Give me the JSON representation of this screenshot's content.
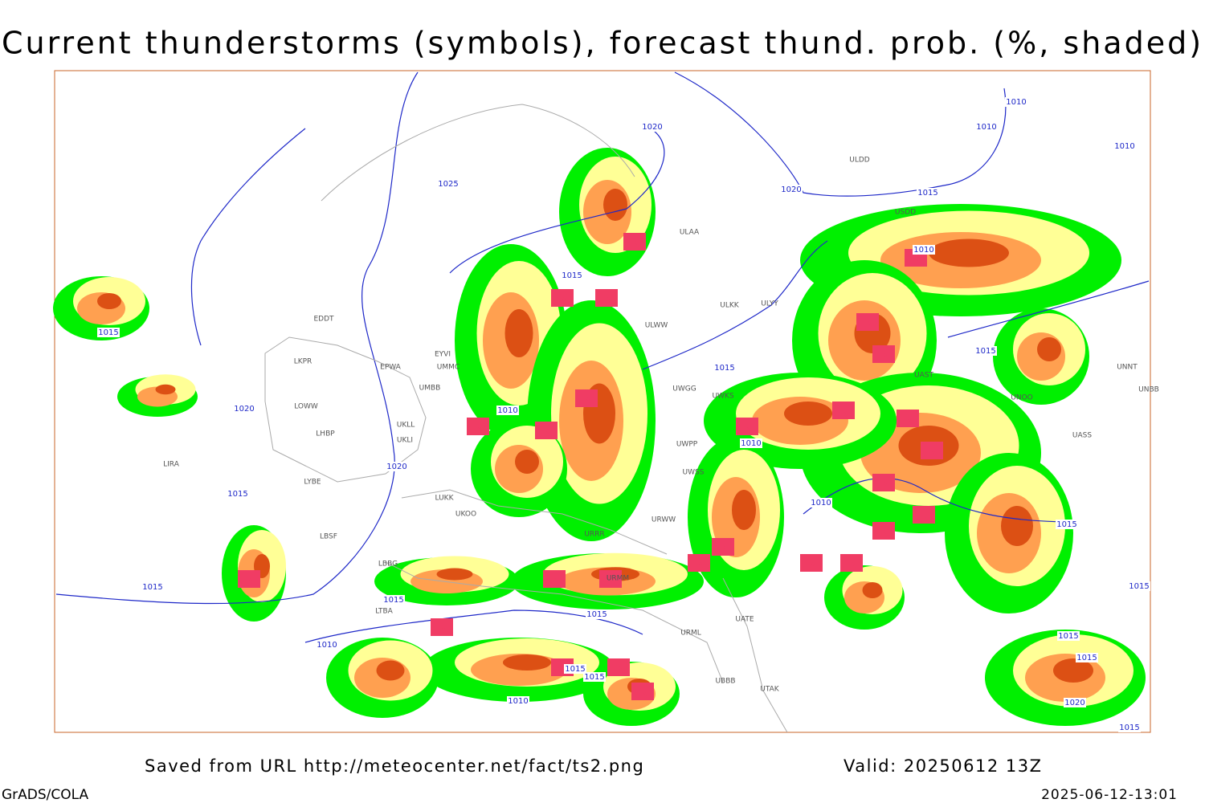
{
  "header": {
    "title": "Current thunderstorms (symbols), forecast thund. prob. (%, shaded)"
  },
  "footer": {
    "source": "Saved from URL http://meteocenter.net/fact/ts2.png",
    "valid": "Valid: 20250612 13Z",
    "software": "GrADS/COLA",
    "timestamp": "2025-06-12-13:01"
  },
  "map": {
    "stations": [
      "ULAA",
      "ULKK",
      "ULWW",
      "UWGG",
      "UWKS",
      "UWPP",
      "UWSS",
      "URWW",
      "URRR",
      "URMM",
      "URML",
      "UBBB",
      "UTAK",
      "UATE",
      "EDDT",
      "EPWA",
      "LKPR",
      "LOWW",
      "LHBP",
      "LIRA",
      "LYBE",
      "LBSF",
      "LBBG",
      "LTBA",
      "UKLL",
      "UKLI",
      "LUKK",
      "UKOO",
      "UMMC",
      "UMBB",
      "EYVI",
      "ULDD",
      "USDD",
      "UNNT",
      "UNBB",
      "UNOO",
      "UAST",
      "UASS",
      "ULYY"
    ],
    "isobars": [
      1020,
      1025,
      1020,
      1015,
      1010,
      1010,
      1010,
      1010,
      1015,
      1015,
      1015,
      1015,
      1010,
      1020,
      1010,
      1020,
      1015,
      1010,
      1015,
      1015,
      1015,
      1015,
      1010,
      1015,
      1015,
      1010,
      1015,
      1015,
      1015,
      1020,
      1015
    ]
  }
}
